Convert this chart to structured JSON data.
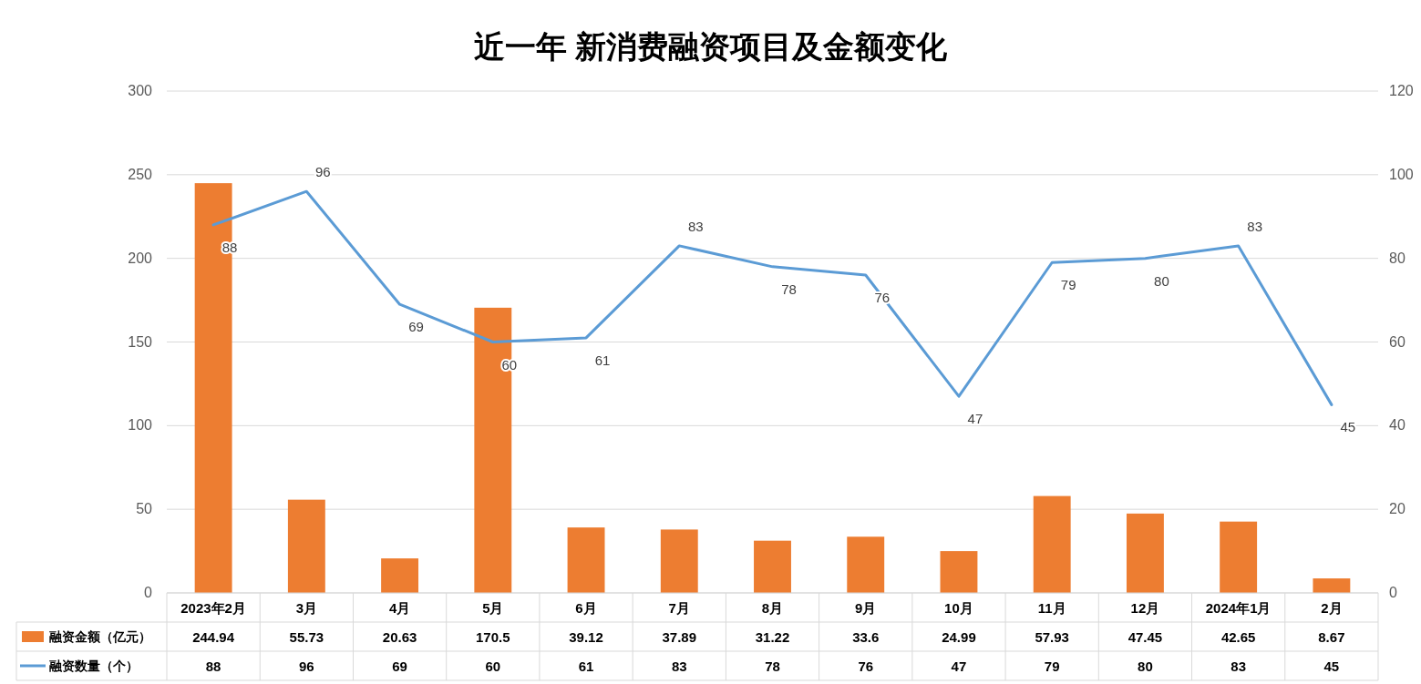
{
  "chart_data": {
    "type": "bar",
    "title": "近一年 新消费融资项目及金额变化",
    "categories": [
      "2023年2月",
      "3月",
      "4月",
      "5月",
      "6月",
      "7月",
      "8月",
      "9月",
      "10月",
      "11月",
      "12月",
      "2024年1月",
      "2月"
    ],
    "series": [
      {
        "name": "融资金额（亿元）",
        "color": "#ed7d31",
        "values": [
          244.94,
          55.73,
          20.63,
          170.5,
          39.12,
          37.89,
          31.22,
          33.6,
          24.99,
          57.93,
          47.45,
          42.65,
          8.67
        ]
      },
      {
        "name": "融资数量（个）",
        "type": "line",
        "axis": "y2",
        "color": "#5b9bd5",
        "values": [
          88,
          96,
          69,
          60,
          61,
          83,
          78,
          76,
          47,
          79,
          80,
          83,
          45
        ],
        "value_labels": [
          "88",
          "96",
          "69",
          "60",
          "61",
          "83",
          "78",
          "76",
          "47",
          "79",
          "80",
          "83",
          "45"
        ]
      }
    ],
    "ylim": [
      0,
      300
    ],
    "yticks": [
      0,
      50,
      100,
      150,
      200,
      250,
      300
    ],
    "y2lim": [
      0,
      120
    ],
    "y2ticks": [
      0,
      20,
      40,
      60,
      80,
      100,
      120
    ],
    "grid": "y",
    "legend": "bottom left",
    "data_labels": true,
    "marker": "none",
    "line_style": "solid"
  }
}
